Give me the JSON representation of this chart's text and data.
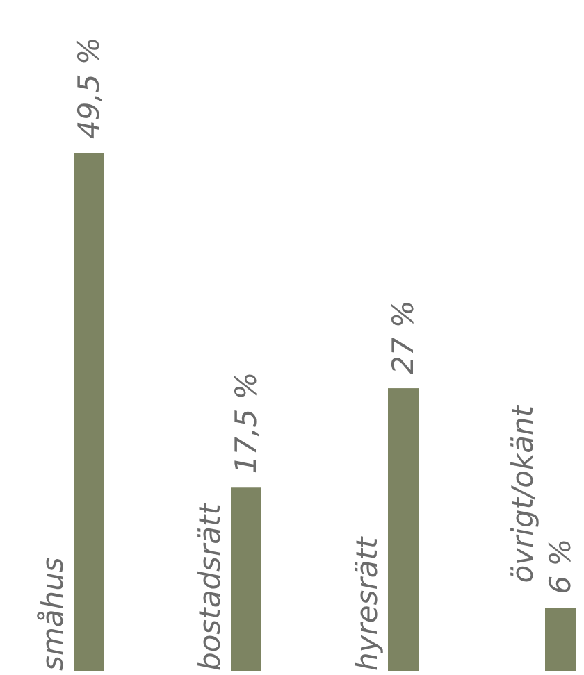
{
  "chart_data": {
    "type": "bar",
    "categories": [
      "småhus",
      "bostadsrätt",
      "hyresrätt",
      "övrigt/okänt"
    ],
    "values": [
      49.5,
      17.5,
      27,
      6
    ],
    "color": "#7d8462",
    "value_labels": [
      "49,5 %",
      "17,5 %",
      "27 %",
      "6 %"
    ]
  }
}
